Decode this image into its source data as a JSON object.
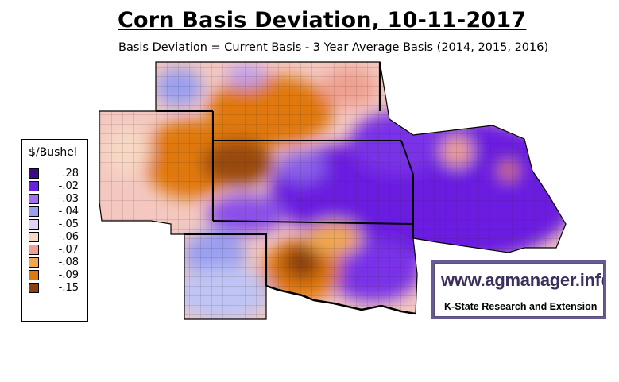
{
  "title": "Corn Basis Deviation, 10-11-2017",
  "subtitle": "Basis Deviation = Current Basis - 3 Year Average Basis (2014, 2015, 2016)",
  "legend": {
    "title": "$/Bushel",
    "items": [
      {
        "label": ".28",
        "color": "#3d0a87"
      },
      {
        "label": "-.02",
        "color": "#6a1ee0"
      },
      {
        "label": "-.03",
        "color": "#a070f0"
      },
      {
        "label": "-.04",
        "color": "#9a9ff0"
      },
      {
        "label": "-.05",
        "color": "#e0d4f4"
      },
      {
        "label": "-.06",
        "color": "#f8d8c4"
      },
      {
        "label": "-.07",
        "color": "#f0a090"
      },
      {
        "label": "-.08",
        "color": "#f2a850"
      },
      {
        "label": "-.09",
        "color": "#e07810"
      },
      {
        "label": "-.15",
        "color": "#8a4010"
      }
    ]
  },
  "badge": {
    "url": "www.agmanager.info",
    "org": "K-State Research and Extension",
    "frame_color": "#6a5a93"
  },
  "map": {
    "states": [
      "Nebraska",
      "Kansas",
      "Missouri",
      "Colorado",
      "Oklahoma",
      "Iowa (south)"
    ],
    "colors": {
      "background_purple": "#6a1ee0",
      "orange": "#e07810",
      "brown": "#8a4010",
      "salmon": "#f0a090",
      "lavender": "#9a9ff0"
    }
  }
}
